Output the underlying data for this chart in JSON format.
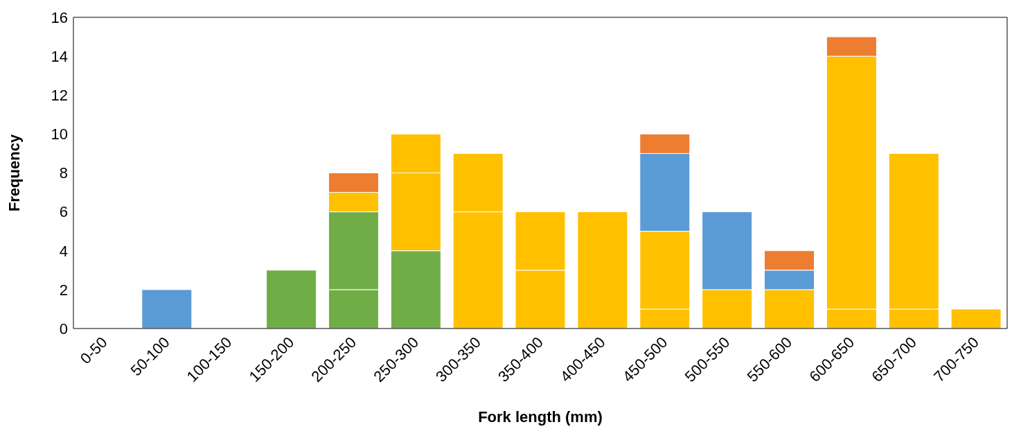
{
  "chart_data": {
    "type": "bar",
    "stacked": true,
    "xlabel": "Fork length (mm)",
    "ylabel": "Frequency",
    "categories": [
      "0-50",
      "50-100",
      "100-150",
      "150-200",
      "200-250",
      "250-300",
      "300-350",
      "350-400",
      "400-450",
      "450-500",
      "500-550",
      "550-600",
      "600-650",
      "650-700",
      "700-750"
    ],
    "series": [
      {
        "color": "#5b9bd5",
        "values": [
          0,
          2,
          0,
          0,
          0,
          0,
          0,
          0,
          0,
          0,
          0,
          0,
          0,
          0,
          0
        ]
      },
      {
        "color": "#70ad47",
        "values": [
          0,
          0,
          0,
          0,
          2,
          0,
          0,
          0,
          0,
          0,
          0,
          0,
          0,
          0,
          0
        ]
      },
      {
        "color": "#70ad47",
        "values": [
          0,
          0,
          0,
          3,
          4,
          4,
          0,
          0,
          0,
          0,
          0,
          0,
          0,
          0,
          0
        ]
      },
      {
        "color": "#ffc000",
        "values": [
          0,
          0,
          0,
          0,
          0,
          4,
          6,
          3,
          0,
          1,
          0,
          0,
          1,
          1,
          0
        ]
      },
      {
        "color": "#ffc000",
        "values": [
          0,
          0,
          0,
          0,
          1,
          2,
          3,
          3,
          6,
          4,
          2,
          2,
          13,
          8,
          1
        ]
      },
      {
        "color": "#5b9bd5",
        "values": [
          0,
          0,
          0,
          0,
          0,
          0,
          0,
          0,
          0,
          4,
          4,
          1,
          0,
          0,
          0
        ]
      },
      {
        "color": "#ed7d31",
        "values": [
          0,
          0,
          0,
          0,
          1,
          0,
          0,
          0,
          0,
          0,
          0,
          0,
          0,
          0,
          0
        ]
      },
      {
        "color": "#ed7d31",
        "values": [
          0,
          0,
          0,
          0,
          0,
          0,
          0,
          0,
          0,
          1,
          0,
          1,
          1,
          0,
          0
        ]
      }
    ],
    "ylim": [
      0,
      16
    ],
    "yticks": [
      0,
      2,
      4,
      6,
      8,
      10,
      12,
      14,
      16
    ]
  }
}
